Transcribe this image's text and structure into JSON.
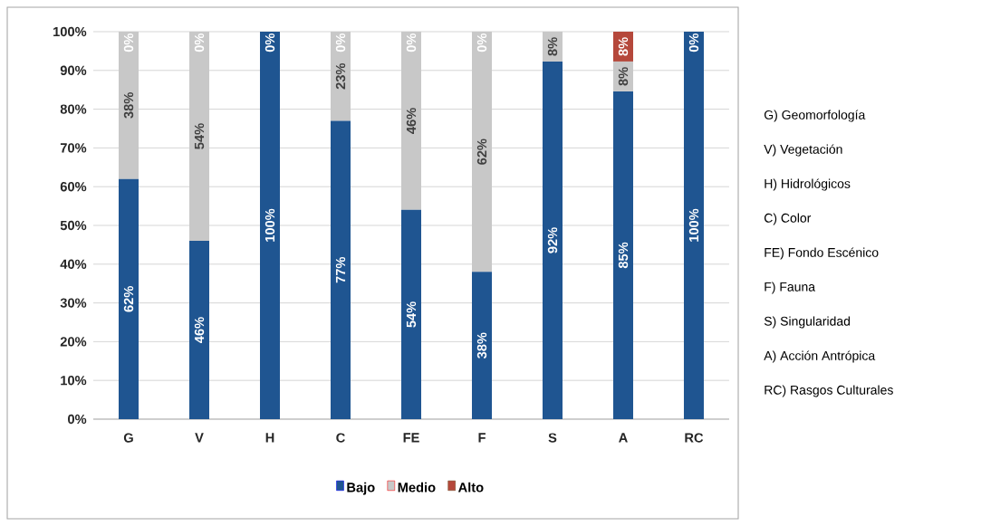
{
  "chart_data": {
    "type": "bar",
    "stacked": true,
    "categories": [
      "G",
      "V",
      "H",
      "C",
      "FE",
      "F",
      "S",
      "A",
      "RC"
    ],
    "series": [
      {
        "name": "Bajo",
        "color": "#1f5591",
        "values": [
          62,
          46,
          100,
          77,
          54,
          38,
          92.3,
          84.6,
          100
        ],
        "value_labels": [
          "62%",
          "46%",
          "100%",
          "77%",
          "54%",
          "38%",
          "92%",
          "85%",
          "100%"
        ]
      },
      {
        "name": "Medio",
        "color": "#c8c8c8",
        "values": [
          38,
          54,
          0,
          23,
          46,
          62,
          7.7,
          7.7,
          0
        ],
        "value_labels": [
          "38%",
          "54%",
          null,
          "23%",
          "46%",
          "62%",
          "8%",
          "8%",
          null
        ]
      },
      {
        "name": "Alto",
        "color": "#b5483b",
        "values": [
          0,
          0,
          0,
          0,
          0,
          0,
          0,
          7.7,
          0
        ],
        "value_labels": [
          "0%",
          "0%",
          "0%",
          "0%",
          "0%",
          "0%",
          null,
          "8%",
          "0%"
        ]
      }
    ],
    "ylim": [
      0,
      100
    ],
    "yticks": [
      {
        "value": 0,
        "label": "0%"
      },
      {
        "value": 10,
        "label": "10%"
      },
      {
        "value": 20,
        "label": "20%"
      },
      {
        "value": 30,
        "label": "30%"
      },
      {
        "value": 40,
        "label": "40%"
      },
      {
        "value": 50,
        "label": "50%"
      },
      {
        "value": 60,
        "label": "60%"
      },
      {
        "value": 70,
        "label": "70%"
      },
      {
        "value": 80,
        "label": "80%"
      },
      {
        "value": 90,
        "label": "90%"
      },
      {
        "value": 100,
        "label": "100%"
      }
    ],
    "grid": "y",
    "legend": "bottom",
    "annotations": [
      "G) Geomorfología",
      "V) Vegetación",
      "H) Hidrológicos",
      "C) Color",
      "FE) Fondo Escénico",
      "F) Fauna",
      "S) Singularidad",
      "A) Acción Antrópica",
      "RC) Rasgos Culturales"
    ]
  }
}
